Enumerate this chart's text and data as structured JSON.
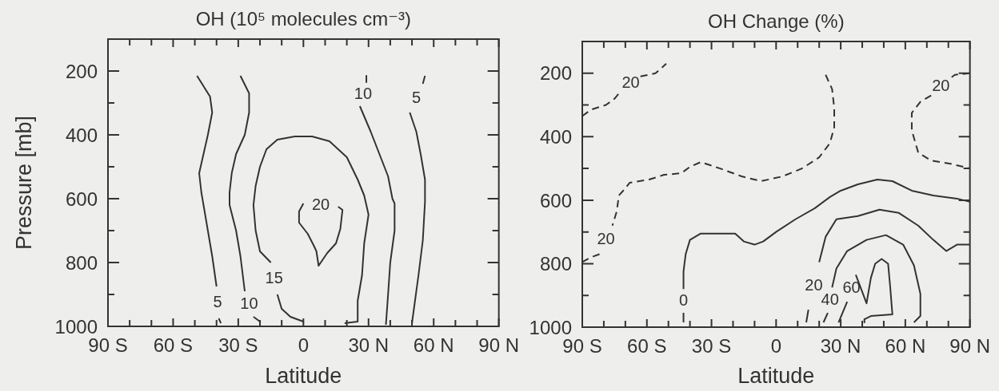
{
  "chart_data": [
    {
      "type": "line",
      "title": "OH (10⁵ molecules cm⁻³)",
      "xlabel": "Latitude",
      "ylabel": "Pressure [mb]",
      "xlim": [
        -90,
        90
      ],
      "xticks": [
        {
          "value": -90,
          "label": "90 S"
        },
        {
          "value": -80,
          "label": null
        },
        {
          "value": -70,
          "label": null
        },
        {
          "value": -60,
          "label": "60 S"
        },
        {
          "value": -50,
          "label": null
        },
        {
          "value": -40,
          "label": null
        },
        {
          "value": -30,
          "label": "30 S"
        },
        {
          "value": -20,
          "label": null
        },
        {
          "value": -10,
          "label": null
        },
        0,
        {
          "value": 10,
          "label": null
        },
        {
          "value": 20,
          "label": null
        },
        {
          "value": 30,
          "label": "30 N"
        },
        {
          "value": 40,
          "label": null
        },
        {
          "value": 50,
          "label": null
        },
        {
          "value": 60,
          "label": "60 N"
        },
        {
          "value": 70,
          "label": null
        },
        {
          "value": 80,
          "label": null
        },
        {
          "value": 90,
          "label": "90 N"
        }
      ],
      "ylim": [
        1000,
        100
      ],
      "yticks": [
        200,
        {
          "value": 300,
          "label": null
        },
        400,
        {
          "value": 500,
          "label": null
        },
        600,
        {
          "value": 700,
          "label": null
        },
        800,
        {
          "value": 900,
          "label": null
        },
        1000
      ],
      "marker": "none",
      "line_style": "solid",
      "series": [
        {
          "name": "5",
          "color": "#333333",
          "x": [
            -49,
            -43,
            -42,
            -44,
            -46,
            -48,
            -47,
            -46,
            -44,
            -42,
            -40,
            null,
            -39,
            -38
          ],
          "values": [
            215,
            280,
            330,
            400,
            460,
            520,
            580,
            620,
            700,
            780,
            875,
            null,
            975,
            990
          ]
        },
        {
          "name": "10",
          "color": "#333333",
          "x": [
            -29,
            -25,
            -25,
            -27,
            -31,
            -33,
            -34,
            -34,
            -31,
            -29,
            -27,
            null,
            -23,
            -20
          ],
          "values": [
            215,
            270,
            330,
            400,
            460,
            520,
            580,
            620,
            700,
            780,
            890,
            null,
            970,
            985
          ]
        },
        {
          "name": "15",
          "color": "#333333",
          "x": [
            0,
            -6,
            -10,
            -12,
            null,
            -15,
            -20,
            -22,
            -23,
            -22,
            -20,
            -17,
            -12,
            -4,
            4,
            12,
            20,
            25,
            28,
            30,
            28,
            27,
            25,
            25,
            19
          ],
          "values": [
            985,
            970,
            945,
            900,
            null,
            800,
            765,
            700,
            620,
            560,
            500,
            445,
            415,
            405,
            405,
            420,
            470,
            540,
            590,
            650,
            740,
            840,
            920,
            985,
            990
          ]
        },
        {
          "name": "20",
          "color": "#333333",
          "x": [
            0,
            -2,
            -2,
            2,
            5,
            6,
            7,
            11,
            15,
            17,
            18,
            16
          ],
          "values": [
            615,
            640,
            675,
            710,
            750,
            765,
            810,
            770,
            740,
            695,
            635,
            625
          ]
        },
        {
          "name": "10",
          "color": "#333333",
          "x": [
            29,
            29,
            null,
            26,
            31,
            35,
            39,
            41,
            42,
            42,
            40,
            39,
            38
          ],
          "values": [
            215,
            235,
            null,
            310,
            390,
            460,
            530,
            600,
            615,
            700,
            800,
            900,
            995
          ]
        },
        {
          "name": "5",
          "color": "#333333",
          "x": [
            56,
            55,
            null,
            49,
            52,
            54,
            56,
            56,
            55,
            53,
            51,
            50
          ],
          "values": [
            215,
            240,
            null,
            330,
            390,
            460,
            540,
            610,
            730,
            840,
            940,
            990
          ]
        }
      ]
    },
    {
      "type": "line",
      "title": "OH Change (%)",
      "xlabel": "Latitude",
      "xlim": [
        -90,
        90
      ],
      "xticks": [
        {
          "value": -90,
          "label": "90 S"
        },
        {
          "value": -80,
          "label": null
        },
        {
          "value": -70,
          "label": null
        },
        {
          "value": -60,
          "label": "60 S"
        },
        {
          "value": -50,
          "label": null
        },
        {
          "value": -40,
          "label": null
        },
        {
          "value": -30,
          "label": "30 S"
        },
        {
          "value": -20,
          "label": null
        },
        {
          "value": -10,
          "label": null
        },
        0,
        {
          "value": 10,
          "label": null
        },
        {
          "value": 20,
          "label": null
        },
        {
          "value": 30,
          "label": "30 N"
        },
        {
          "value": 40,
          "label": null
        },
        {
          "value": 50,
          "label": null
        },
        {
          "value": 60,
          "label": "60 N"
        },
        {
          "value": 70,
          "label": null
        },
        {
          "value": 80,
          "label": null
        },
        {
          "value": 90,
          "label": "90 N"
        }
      ],
      "ylim": [
        1000,
        100
      ],
      "yticks": [
        200,
        {
          "value": 300,
          "label": null
        },
        400,
        {
          "value": 500,
          "label": null
        },
        600,
        {
          "value": 700,
          "label": null
        },
        800,
        {
          "value": 900,
          "label": null
        },
        1000
      ],
      "marker": "none",
      "line_style": "solid",
      "series": [
        {
          "name": "20",
          "color": "#333333",
          "line_style": "dashed",
          "x": [
            -90,
            -86,
            -79,
            -75,
            -72,
            null,
            -63,
            -56,
            -51
          ],
          "values": [
            335,
            315,
            300,
            280,
            255,
            null,
            210,
            200,
            170
          ]
        },
        {
          "name": "20",
          "color": "#333333",
          "line_style": "dashed",
          "x": [
            23,
            26,
            27,
            27,
            25,
            20,
            12,
            3,
            -7,
            -16,
            -26,
            -35,
            -40,
            -44,
            -52,
            -59,
            -68,
            -71,
            -73,
            -74,
            -76,
            null,
            -82,
            -86,
            -90
          ],
          "values": [
            205,
            250,
            310,
            370,
            420,
            465,
            500,
            525,
            540,
            525,
            500,
            480,
            495,
            515,
            520,
            535,
            545,
            570,
            585,
            635,
            680,
            null,
            770,
            780,
            795
          ]
        },
        {
          "name": "20",
          "color": "#333333",
          "line_style": "dashed",
          "x": [
            90,
            83,
            81,
            null,
            72,
            67,
            63,
            63,
            66,
            72,
            81,
            90
          ],
          "values": [
            200,
            205,
            215,
            null,
            270,
            290,
            325,
            380,
            450,
            475,
            485,
            500
          ]
        },
        {
          "name": "0",
          "color": "#333333",
          "x": [
            -43,
            -43,
            null,
            -43,
            -43,
            -42,
            -40,
            -35,
            -19,
            -15,
            -10,
            -6,
            0,
            9,
            18,
            25,
            30,
            38,
            47,
            54,
            63,
            73,
            84,
            90
          ],
          "values": [
            985,
            955,
            null,
            880,
            825,
            770,
            725,
            705,
            705,
            730,
            740,
            730,
            700,
            660,
            625,
            590,
            570,
            550,
            535,
            540,
            570,
            585,
            595,
            605
          ]
        },
        {
          "name": "20",
          "color": "#333333",
          "x": [
            14,
            15,
            null,
            20,
            23,
            28,
            38,
            48,
            57,
            66,
            73,
            79,
            84,
            90
          ],
          "values": [
            985,
            945,
            null,
            795,
            715,
            660,
            650,
            630,
            640,
            680,
            725,
            760,
            740,
            740
          ]
        },
        {
          "name": "40",
          "color": "#333333",
          "x": [
            22,
            24,
            null,
            26,
            28,
            33,
            42,
            51,
            59,
            64,
            67,
            67,
            64
          ],
          "values": [
            985,
            955,
            null,
            875,
            815,
            760,
            725,
            710,
            740,
            805,
            895,
            965,
            985
          ]
        },
        {
          "name": "60",
          "color": "#333333",
          "x": [
            29,
            33,
            null,
            37,
            42,
            44,
            46,
            49,
            52,
            53,
            54,
            44,
            41,
            41
          ],
          "values": [
            985,
            920,
            null,
            835,
            925,
            845,
            800,
            785,
            800,
            875,
            960,
            965,
            975,
            985
          ]
        }
      ]
    }
  ]
}
